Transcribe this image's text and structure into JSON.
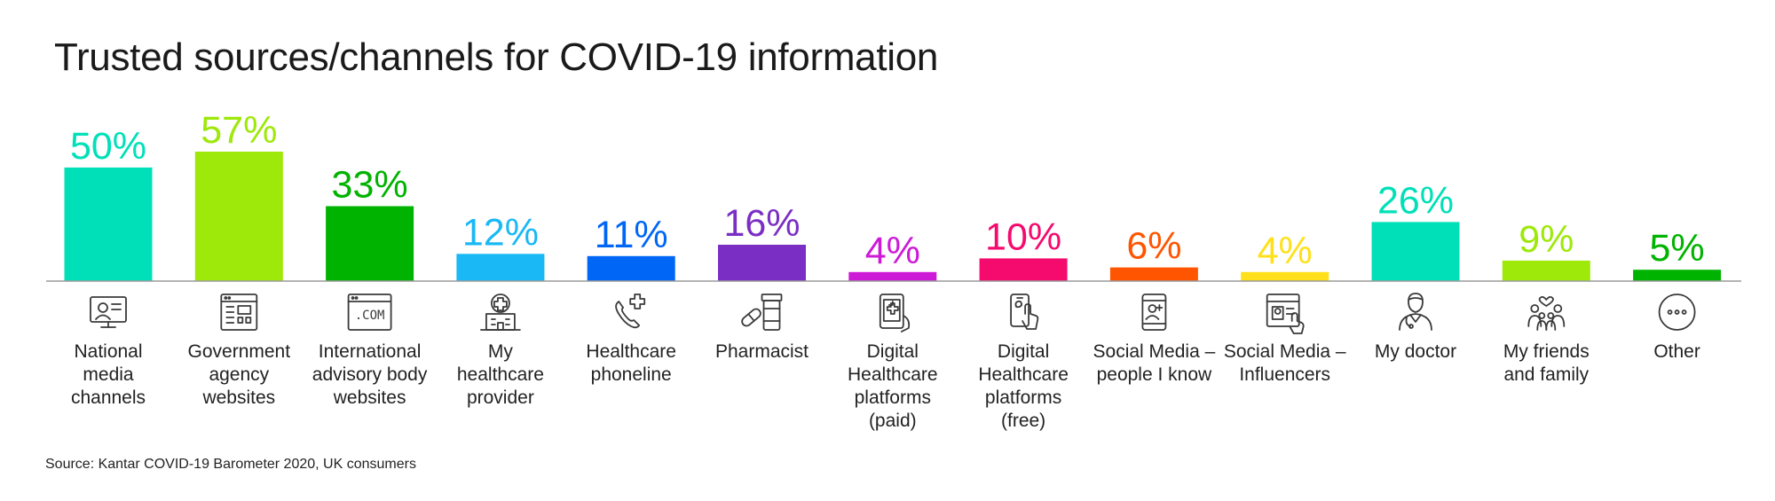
{
  "chart_data": {
    "type": "bar",
    "title": "Trusted sources/channels for COVID-19 information",
    "source": "Source: Kantar COVID-19 Barometer 2020, UK consumers",
    "categories": [
      "National media channels",
      "Government agency websites",
      "International advisory body websites",
      "My healthcare provider",
      "Healthcare phoneline",
      "Pharmacist",
      "Digital Healthcare platforms (paid)",
      "Digital Healthcare platforms (free)",
      "Social Media – people I know",
      "Social Media – Influencers",
      "My doctor",
      "My friends and family",
      "Other"
    ],
    "category_lines": [
      [
        "National",
        "media",
        "channels"
      ],
      [
        "Government",
        "agency",
        "websites"
      ],
      [
        "International",
        "advisory body",
        "websites"
      ],
      [
        "My",
        "healthcare",
        "provider"
      ],
      [
        "Healthcare",
        "phoneline"
      ],
      [
        "Pharmacist"
      ],
      [
        "Digital",
        "Healthcare",
        "platforms",
        "(paid)"
      ],
      [
        "Digital",
        "Healthcare",
        "platforms",
        "(free)"
      ],
      [
        "Social Media –",
        "people I know"
      ],
      [
        "Social Media –",
        "Influencers"
      ],
      [
        "My doctor"
      ],
      [
        "My friends",
        "and family"
      ],
      [
        "Other"
      ]
    ],
    "values": [
      50,
      57,
      33,
      12,
      11,
      16,
      4,
      10,
      6,
      4,
      26,
      9,
      5
    ],
    "value_labels": [
      "50%",
      "57%",
      "33%",
      "12%",
      "11%",
      "16%",
      "4%",
      "10%",
      "6%",
      "4%",
      "26%",
      "9%",
      "5%"
    ],
    "colors": [
      "#00e0b8",
      "#9ee80a",
      "#00b300",
      "#1ab8f5",
      "#0066f5",
      "#7b2ec4",
      "#cc1ad6",
      "#f50a6e",
      "#ff5500",
      "#ffe01a",
      "#00e0b8",
      "#9ee80a",
      "#00b300"
    ],
    "icons": [
      "tv-person-icon",
      "website-layout-icon",
      "dotcom-browser-icon",
      "hospital-icon",
      "phone-plus-icon",
      "pill-bottle-icon",
      "tablet-medical-icon",
      "smartphone-touch-icon",
      "phone-contact-icon",
      "browser-profile-icon",
      "doctor-icon",
      "family-heart-icon",
      "more-dots-icon"
    ],
    "ylim": [
      0,
      57
    ],
    "grid": false,
    "legend": "none"
  }
}
